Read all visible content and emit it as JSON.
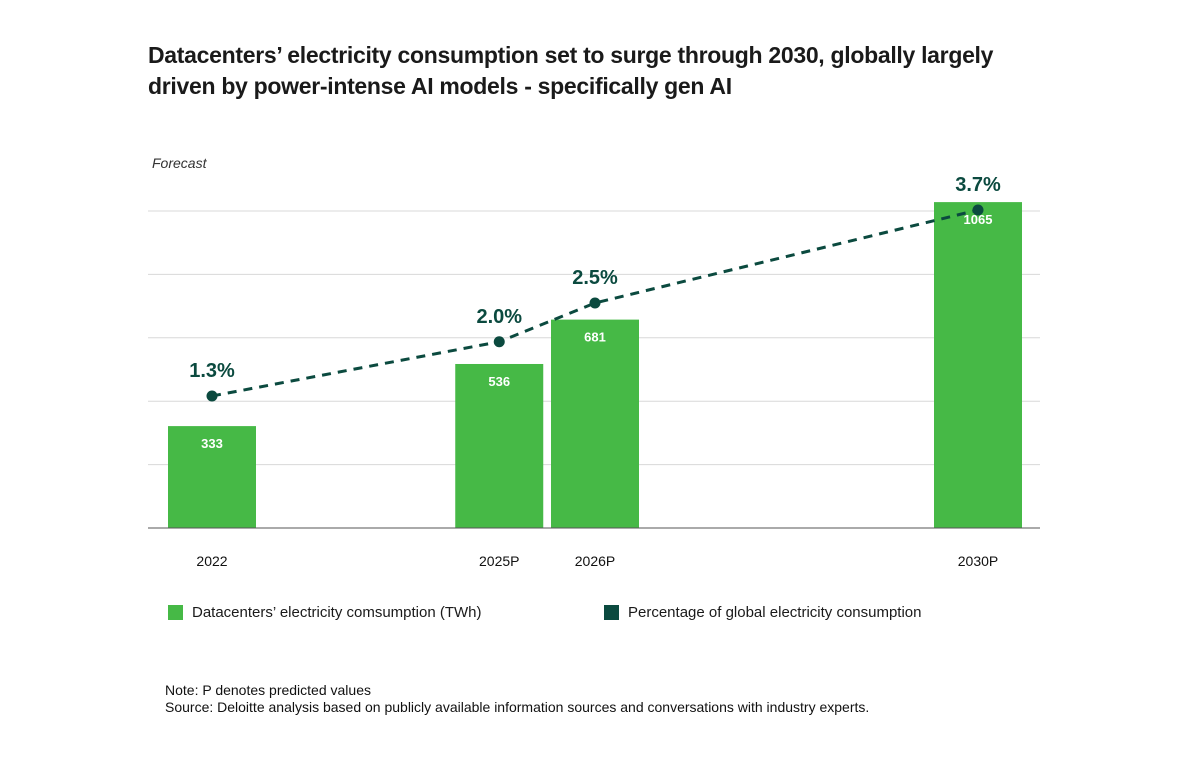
{
  "title": "Datacenters’ electricity consumption set to surge through 2030, globally largely\ndriven by power-intense AI models - specifically gen AI",
  "chart_data": {
    "type": "bar",
    "forecast_label": "Forecast",
    "categories": [
      "2022",
      "2025P",
      "2026P",
      "2030P"
    ],
    "category_positions": [
      2022,
      2025,
      2026,
      2030
    ],
    "series": [
      {
        "name": "Datacenters’ electricity comsumption (TWh)",
        "type": "bar",
        "values": [
          333,
          536,
          681,
          1065
        ],
        "color": "#46b946"
      },
      {
        "name": "Percentage of global electricity consumption",
        "type": "line",
        "style": "dashed",
        "values": [
          1.3,
          2.0,
          2.5,
          3.7
        ],
        "labels": [
          "1.3%",
          "2.0%",
          "2.5%",
          "3.7%"
        ],
        "color": "#0b4a3f"
      }
    ],
    "ylim": [
      0,
      1100
    ],
    "grid": true,
    "legend_position": "bottom"
  },
  "notes": {
    "note": "Note: P denotes predicted values",
    "source": "Source: Deloitte analysis based on publicly available information sources and conversations with industry experts."
  }
}
